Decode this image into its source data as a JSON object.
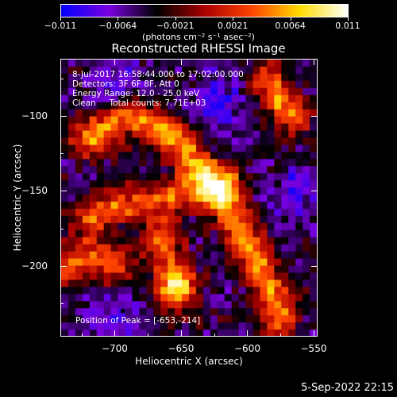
{
  "colorbar": {
    "tick_labels": [
      "-0.011",
      "-0.0064",
      "-0.0021",
      "0.0021",
      "0.0064",
      "0.011"
    ],
    "units": "(photons cm⁻² s⁻¹ asec⁻²)",
    "range": [
      -0.011,
      0.011
    ],
    "colors": [
      "#0000ff",
      "#7a00e0",
      "#000000",
      "#aa0000",
      "#ff4400",
      "#ffdd00",
      "#ffffff"
    ]
  },
  "annotations": {
    "time": "8-Jul-2017 16:58:44.000 to 17:02:00.000",
    "detectors": "Detectors: 3F 6F 8F, Att 0",
    "energy": "Energy Range: 12.0 - 25.0 keV",
    "clean": "Clean     Total counts: 7.71E+03",
    "peak": "Position of Peak = [-653,-214]"
  },
  "chart_data": {
    "type": "heatmap",
    "title": "Reconstructed RHESSI Image",
    "xlabel": "Heliocentric X (arcsec)",
    "ylabel": "Heliocentric Y (arcsec)",
    "xlim": [
      -741,
      -547
    ],
    "ylim": [
      -247,
      -62
    ],
    "xticks": [
      -700,
      -650,
      -600,
      -550
    ],
    "xtick_labels": [
      "−700",
      "−650",
      "−600",
      "−550"
    ],
    "yticks": [
      -100,
      -150,
      -200
    ],
    "ytick_labels": [
      "−100",
      "−150",
      "−200"
    ],
    "peak_position": [
      -653,
      -214
    ],
    "marker_position": [
      -695,
      -229
    ],
    "features": [
      {
        "kind": "ridge",
        "path": [
          [
            -720,
            -115
          ],
          [
            -690,
            -100
          ],
          [
            -660,
            -110
          ],
          [
            -630,
            -140
          ],
          [
            -605,
            -175
          ],
          [
            -585,
            -210
          ],
          [
            -575,
            -235
          ]
        ],
        "value": 0.006
      },
      {
        "kind": "ridge",
        "path": [
          [
            -720,
            -170
          ],
          [
            -700,
            -160
          ],
          [
            -675,
            -158
          ],
          [
            -645,
            -150
          ],
          [
            -615,
            -145
          ]
        ],
        "value": 0.004
      },
      {
        "kind": "ridge",
        "path": [
          [
            -735,
            -200
          ],
          [
            -720,
            -195
          ],
          [
            -700,
            -200
          ]
        ],
        "value": 0.004
      },
      {
        "kind": "ridge",
        "path": [
          [
            -585,
            -75
          ],
          [
            -575,
            -90
          ],
          [
            -565,
            -100
          ]
        ],
        "value": 0.005
      },
      {
        "kind": "blob",
        "center": [
          -653,
          -214
        ],
        "value": 0.011
      },
      {
        "kind": "blob",
        "center": [
          -665,
          -185
        ],
        "value": 0.006
      },
      {
        "kind": "blob",
        "center": [
          -700,
          -235
        ],
        "value": -0.008
      },
      {
        "kind": "blob",
        "center": [
          -695,
          -80
        ],
        "value": -0.007
      },
      {
        "kind": "blob",
        "center": [
          -620,
          -90
        ],
        "value": -0.008
      },
      {
        "kind": "blob",
        "center": [
          -565,
          -150
        ],
        "value": -0.007
      }
    ]
  },
  "timestamp": "5-Sep-2022 22:15"
}
